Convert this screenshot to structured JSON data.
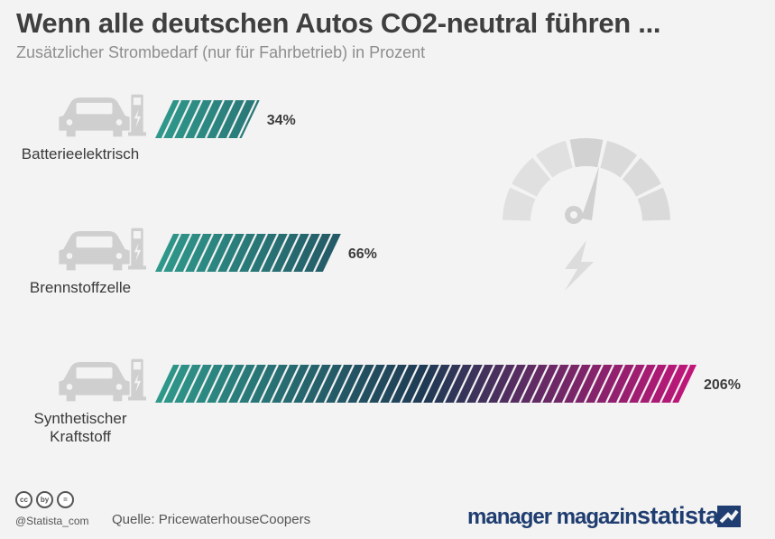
{
  "header": {
    "title": "Wenn alle deutschen Autos CO2-neutral führen ...",
    "subtitle": "Zusätzlicher Strombedarf (nur für Fahrbetrieb) in Prozent"
  },
  "chart_data": {
    "type": "bar",
    "orientation": "horizontal",
    "title": "Wenn alle deutschen Autos CO2-neutral führen ...",
    "subtitle": "Zusätzlicher Strombedarf (nur für Fahrbetrieb) in Prozent",
    "categories": [
      "Batterieelektrisch",
      "Brennstoffzelle",
      "Synthetischer Kraftstoff"
    ],
    "category_lines": [
      [
        "Batterieelektrisch"
      ],
      [
        "Brennstoffzelle"
      ],
      [
        "Synthetischer",
        "Kraftstoff"
      ]
    ],
    "values": [
      34,
      66,
      206
    ],
    "value_labels": [
      "34%",
      "66%",
      "206%"
    ],
    "unit": "%",
    "xlim": [
      0,
      206
    ],
    "colors": {
      "start": "#2f9a8c",
      "mid": "#1f3a54",
      "end": "#c4157a"
    }
  },
  "footer": {
    "license_icons": [
      "cc",
      "by",
      "="
    ],
    "handle": "@Statista_com",
    "source": "Quelle: PricewaterhouseCoopers",
    "brand_primary": "manager magazin",
    "brand_secondary": "statista"
  },
  "icons": {
    "category_icon": "car-charging-station-icon",
    "decoration": "speedometer-icon",
    "lightning": "lightning-icon"
  }
}
